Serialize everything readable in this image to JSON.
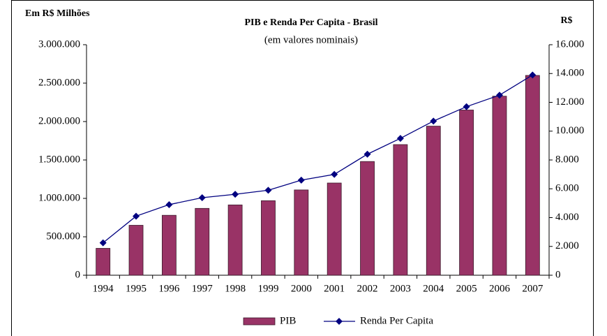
{
  "chart_data": {
    "type": "bar_line",
    "title": "PIB e Renda Per Capita  - Brasil",
    "subtitle": "(em valores nominais)",
    "y_label": "Em R$ Milhões",
    "y2_label": "R$",
    "categories": [
      "1994",
      "1995",
      "1996",
      "1997",
      "1998",
      "1999",
      "2000",
      "2001",
      "2002",
      "2003",
      "2004",
      "2005",
      "2006",
      "2007"
    ],
    "series": [
      {
        "name": "PIB",
        "type": "bar",
        "color": "#993366",
        "values": [
          350000,
          650000,
          780000,
          870000,
          915000,
          970000,
          1110000,
          1200000,
          1480000,
          1700000,
          1940000,
          2150000,
          2330000,
          2600000
        ]
      },
      {
        "name": "Renda Per Capita",
        "type": "line",
        "axis": "y2",
        "color": "#000080",
        "values": [
          2250,
          4100,
          4900,
          5380,
          5620,
          5900,
          6600,
          7000,
          8400,
          9500,
          10700,
          11700,
          12500,
          13900
        ]
      }
    ],
    "ylim": [
      0,
      3000000
    ],
    "yticks": [
      0,
      {
        "value": 500000,
        "label": "500.000"
      },
      {
        "value": 1000000,
        "label": "1.000.000"
      },
      {
        "value": 1500000,
        "label": "1.500.000"
      },
      {
        "value": 2000000,
        "label": "2.000.000"
      },
      {
        "value": 2500000,
        "label": "2.500.000"
      },
      {
        "value": 3000000,
        "label": "3.000.000"
      }
    ],
    "y2lim": [
      0,
      16000
    ],
    "y2ticks": [
      0,
      {
        "value": 2000,
        "label": "2.000"
      },
      {
        "value": 4000,
        "label": "4.000"
      },
      {
        "value": 6000,
        "label": "6.000"
      },
      {
        "value": 8000,
        "label": "8.000"
      },
      {
        "value": 10000,
        "label": "10.000"
      },
      {
        "value": 12000,
        "label": "12.000"
      },
      {
        "value": 14000,
        "label": "14.000"
      },
      {
        "value": 16000,
        "label": "16.000"
      }
    ],
    "legend": "bottom"
  }
}
